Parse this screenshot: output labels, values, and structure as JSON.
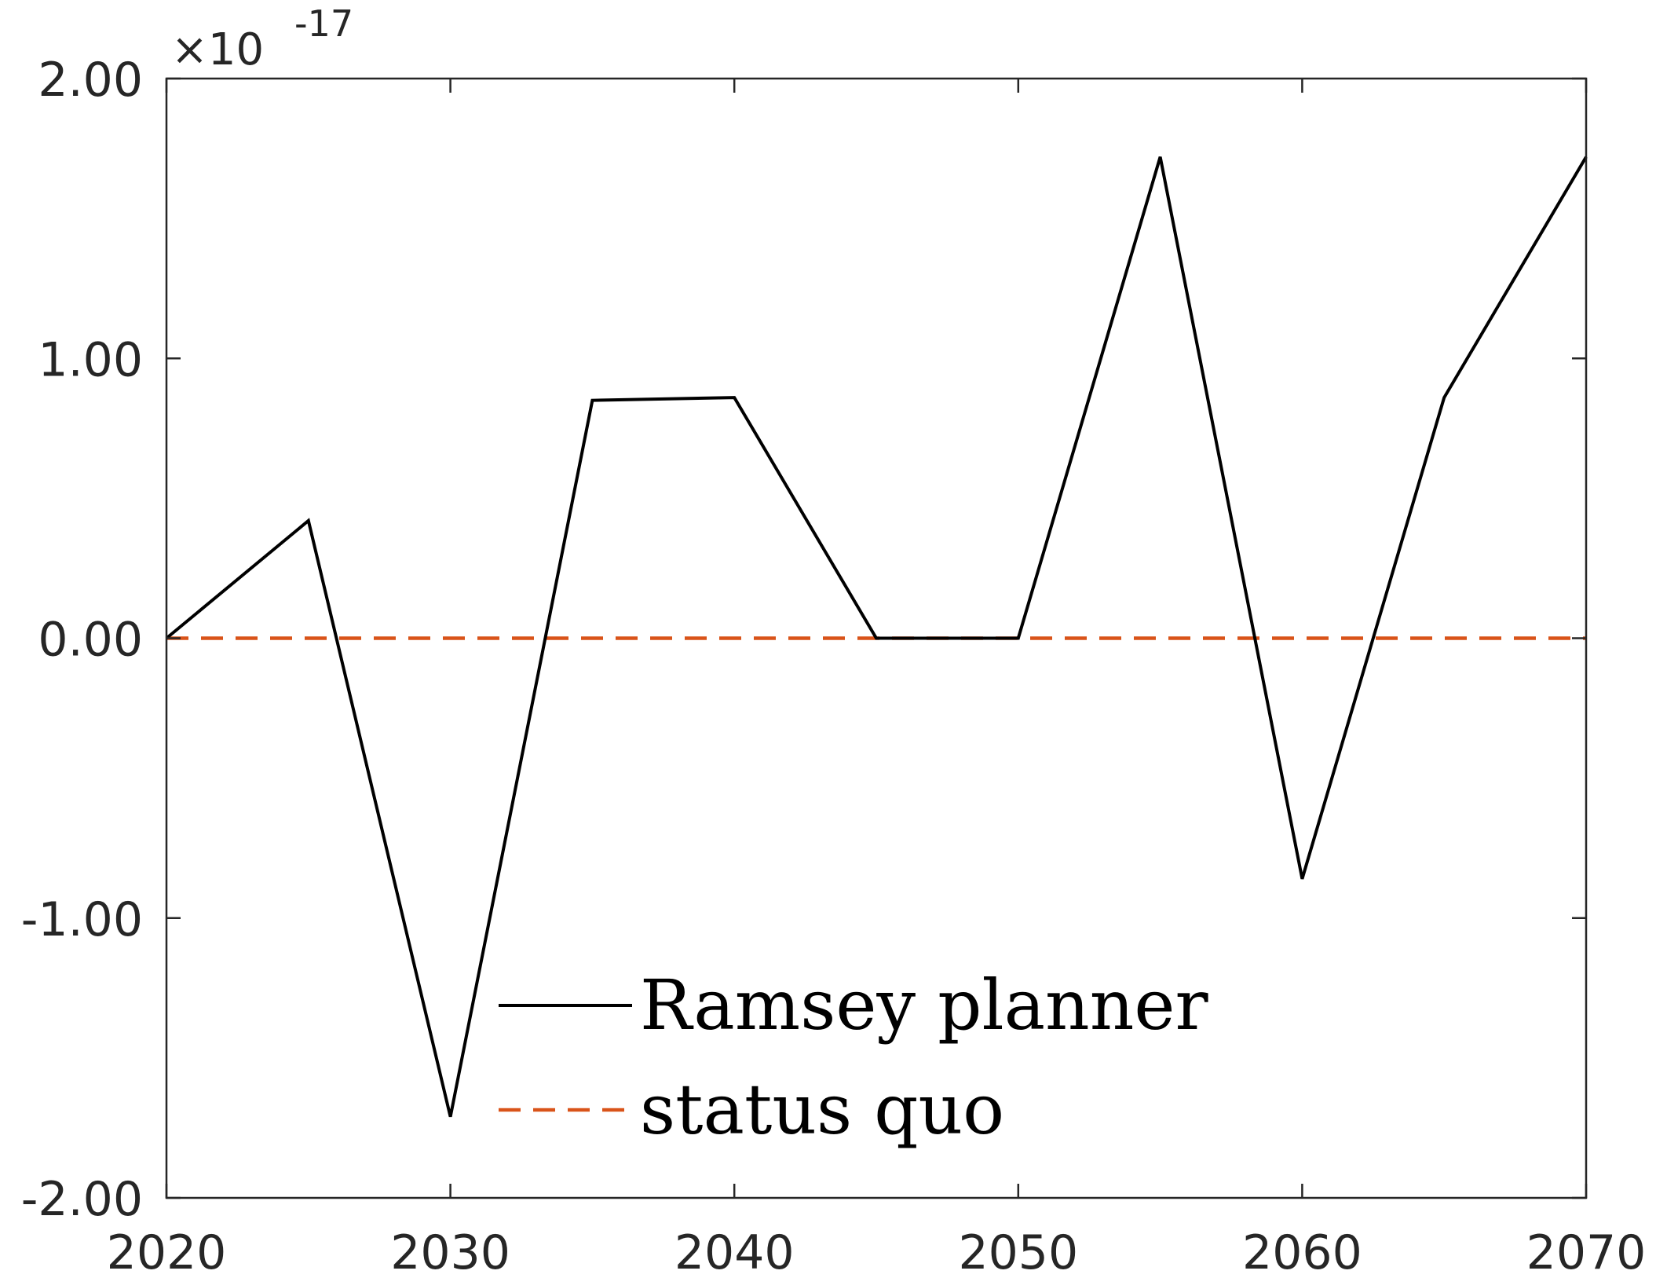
{
  "chart_data": {
    "type": "line",
    "x_ticks": [
      2020,
      2030,
      2040,
      2050,
      2060,
      2070
    ],
    "x_tick_labels": [
      "2020",
      "2030",
      "2040",
      "2050",
      "2060",
      "2070"
    ],
    "y_ticks": [
      -2,
      -1,
      0,
      1,
      2
    ],
    "y_tick_labels": [
      "-2.00",
      "-1.00",
      "0.00",
      "1.00",
      "2.00"
    ],
    "y_exponent_label": "×10",
    "y_exponent": "-17",
    "xlim": [
      2020,
      2070
    ],
    "ylim": [
      -2,
      2
    ],
    "grid": false,
    "legend_position": "bottom-center",
    "x": [
      2020,
      2025,
      2030,
      2035,
      2040,
      2045,
      2050,
      2055,
      2060,
      2065,
      2070
    ],
    "series": [
      {
        "name": "Ramsey planner",
        "style": "solid",
        "color": "#000000",
        "values": [
          0.0,
          0.42,
          -1.71,
          0.85,
          0.86,
          0.0,
          0.0,
          1.72,
          -0.86,
          0.86,
          1.72
        ]
      },
      {
        "name": "status quo",
        "style": "dashed",
        "color": "#D95319",
        "values": [
          0,
          0,
          0,
          0,
          0,
          0,
          0,
          0,
          0,
          0,
          0
        ]
      }
    ]
  }
}
